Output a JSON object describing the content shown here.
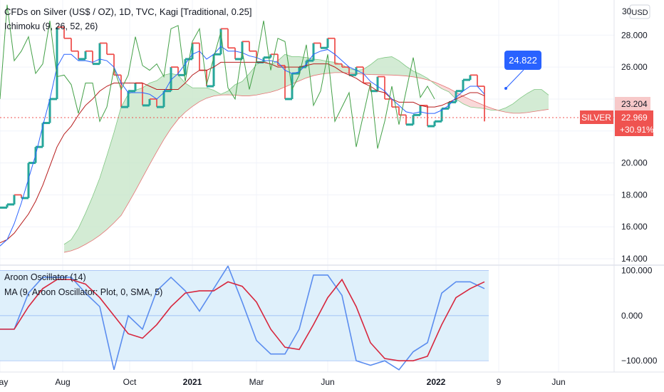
{
  "header": {
    "title": "CFDs on Silver (US$ / OZ), 1D, TVC, Kagi [Traditional, 0.25]",
    "indicator": "Ichimoku (9, 26, 52, 26)"
  },
  "lower_pane": {
    "aroon_label": "Aroon Oscillator (14)",
    "ma_label": "MA (9, Aroon Oscillator: Plot, 0, SMA, 5)"
  },
  "badges": {
    "currency": "USD",
    "callout": "24.822",
    "symbol": "SILVER",
    "last_price": "22.969",
    "change_pct": "+30.91%",
    "cloud_price": "23.204",
    "axis_top_partial": "30"
  },
  "colors": {
    "kagi_up": "#26a69a",
    "kagi_down": "#ef5350",
    "tenkan": "#2962ff",
    "kijun": "#b71c1c",
    "lagging": "#43a047",
    "cloud_bull": "#c8e6c9",
    "cloud_bear": "#f8d0d0",
    "aroon": "#5b8def",
    "aroon_ma": "#d7263d",
    "aroon_band": "#dff0fb",
    "callout_bg": "#2962ff",
    "price_tag": "#ef5350"
  },
  "chart_data": [
    {
      "type": "line",
      "name": "price-pane",
      "title": "CFDs on Silver (US$ / OZ), 1D, TVC, Kagi [Traditional, 0.25]",
      "x_ticks": [
        "May",
        "Aug",
        "Oct",
        "2021",
        "Mar",
        "Jun",
        "2022",
        "9",
        "Jun"
      ],
      "y_ticks": [
        14.0,
        16.0,
        18.0,
        20.0,
        22.0,
        24.0,
        26.0,
        28.0
      ],
      "y_tick_labels": [
        "14.000",
        "16.000",
        "18.000",
        "20.000",
        "",
        "",
        "26.000",
        "28.000"
      ],
      "ylim": [
        13.6,
        30.2
      ],
      "x": [
        0,
        10,
        20,
        30,
        40,
        50,
        60,
        70,
        80,
        90,
        100,
        110,
        120,
        130,
        140,
        150,
        160,
        170,
        180,
        190,
        200,
        210,
        220,
        230,
        240,
        250,
        260,
        270,
        280,
        290,
        300,
        310,
        320,
        330,
        340,
        350,
        360,
        370,
        380,
        390,
        400,
        410,
        420,
        430,
        440,
        450,
        460,
        470,
        480,
        490,
        500,
        510,
        520,
        530,
        540,
        550,
        560,
        570,
        580,
        590,
        600,
        610,
        620,
        630,
        640,
        650,
        660,
        670,
        680
      ],
      "series": [
        {
          "name": "kagi",
          "values": [
            17.2,
            17.4,
            18.0,
            17.8,
            20.0,
            21.0,
            22.5,
            24.0,
            28.5,
            27.8,
            27.0,
            26.5,
            27.0,
            26.2,
            27.5,
            26.8,
            25.5,
            23.5,
            24.5,
            25.0,
            23.6,
            24.0,
            23.5,
            24.5,
            26.0,
            25.5,
            26.5,
            27.5,
            25.8,
            24.8,
            26.8,
            28.4,
            27.2,
            26.5,
            27.6,
            27.0,
            26.3,
            26.6,
            26.8,
            26.1,
            24.0,
            25.6,
            26.0,
            26.4,
            27.5,
            27.2,
            27.8,
            26.2,
            26.0,
            25.5,
            26.0,
            25.0,
            24.5,
            25.4,
            24.0,
            23.5,
            23.0,
            22.4,
            23.0,
            23.6,
            22.3,
            22.6,
            23.4,
            23.8,
            24.5,
            25.2,
            25.5,
            24.8,
            22.6
          ]
        },
        {
          "name": "tenkan",
          "values": [
            14.8,
            15.2,
            16.2,
            17.5,
            19.0,
            20.5,
            22.3,
            24.0,
            26.0,
            26.8,
            26.8,
            26.4,
            26.4,
            26.3,
            26.5,
            26.4,
            26.0,
            25.0,
            24.4,
            24.4,
            24.4,
            24.3,
            24.0,
            24.4,
            25.2,
            25.6,
            26.2,
            26.8,
            27.0,
            26.5,
            26.8,
            27.3,
            27.0,
            27.0,
            26.9,
            26.7,
            26.6,
            26.4,
            26.4,
            26.3,
            25.8,
            25.6,
            25.7,
            26.2,
            26.8,
            27.0,
            27.1,
            26.8,
            26.4,
            26.0,
            25.8,
            25.6,
            25.1,
            24.8,
            24.5,
            24.0,
            23.6,
            23.2,
            23.1,
            23.2,
            23.1,
            23.1,
            23.3,
            23.6,
            24.1,
            24.5,
            24.8,
            24.8,
            24.3
          ]
        },
        {
          "name": "kijun",
          "values": [
            15.0,
            15.2,
            15.6,
            16.2,
            16.8,
            17.6,
            18.6,
            19.8,
            21.0,
            21.8,
            22.3,
            23.0,
            23.6,
            24.0,
            24.5,
            24.8,
            25.0,
            25.0,
            25.0,
            25.0,
            25.0,
            24.8,
            24.6,
            24.6,
            24.6,
            24.6,
            25.0,
            25.5,
            25.8,
            25.8,
            26.0,
            26.3,
            26.3,
            26.3,
            26.3,
            26.3,
            26.3,
            26.3,
            26.2,
            26.0,
            26.0,
            26.0,
            26.0,
            26.1,
            26.2,
            26.2,
            26.2,
            26.0,
            25.7,
            25.5,
            25.3,
            25.0,
            24.8,
            24.5,
            24.4,
            24.0,
            23.8,
            23.8,
            23.8,
            23.6,
            23.5,
            23.5,
            23.6,
            23.8,
            24.0,
            24.2,
            24.4,
            24.4,
            24.2
          ]
        }
      ]
    },
    {
      "type": "line",
      "name": "aroon-pane",
      "title": "Aroon Oscillator (14)",
      "y_ticks": [
        -100,
        0,
        100
      ],
      "y_tick_labels": [
        "−100.000",
        "0.000",
        "100.000"
      ],
      "ylim": [
        -125,
        112
      ],
      "band": [
        -100,
        100
      ],
      "x": [
        0,
        20,
        40,
        60,
        80,
        100,
        120,
        140,
        160,
        180,
        200,
        220,
        240,
        260,
        280,
        300,
        320,
        340,
        360,
        380,
        400,
        420,
        440,
        460,
        480,
        500,
        520,
        540,
        560,
        580,
        600,
        620,
        640,
        660,
        680
      ],
      "series": [
        {
          "name": "Aroon Oscillator (14)",
          "values": [
            -30,
            -30,
            50,
            85,
            85,
            85,
            50,
            20,
            -120,
            0,
            -30,
            55,
            85,
            55,
            10,
            60,
            110,
            30,
            -55,
            -85,
            -85,
            -30,
            90,
            90,
            45,
            -100,
            -110,
            -100,
            -120,
            -80,
            -60,
            50,
            75,
            75,
            60
          ]
        },
        {
          "name": "MA (9, Aroon Oscillator: Plot, 0, SMA, 5)",
          "values": [
            -30,
            -30,
            20,
            60,
            80,
            80,
            70,
            40,
            0,
            -40,
            -50,
            -20,
            20,
            50,
            55,
            55,
            75,
            65,
            30,
            -30,
            -70,
            -75,
            -20,
            40,
            80,
            20,
            -60,
            -95,
            -100,
            -100,
            -90,
            -20,
            40,
            60,
            75
          ]
        }
      ]
    }
  ]
}
